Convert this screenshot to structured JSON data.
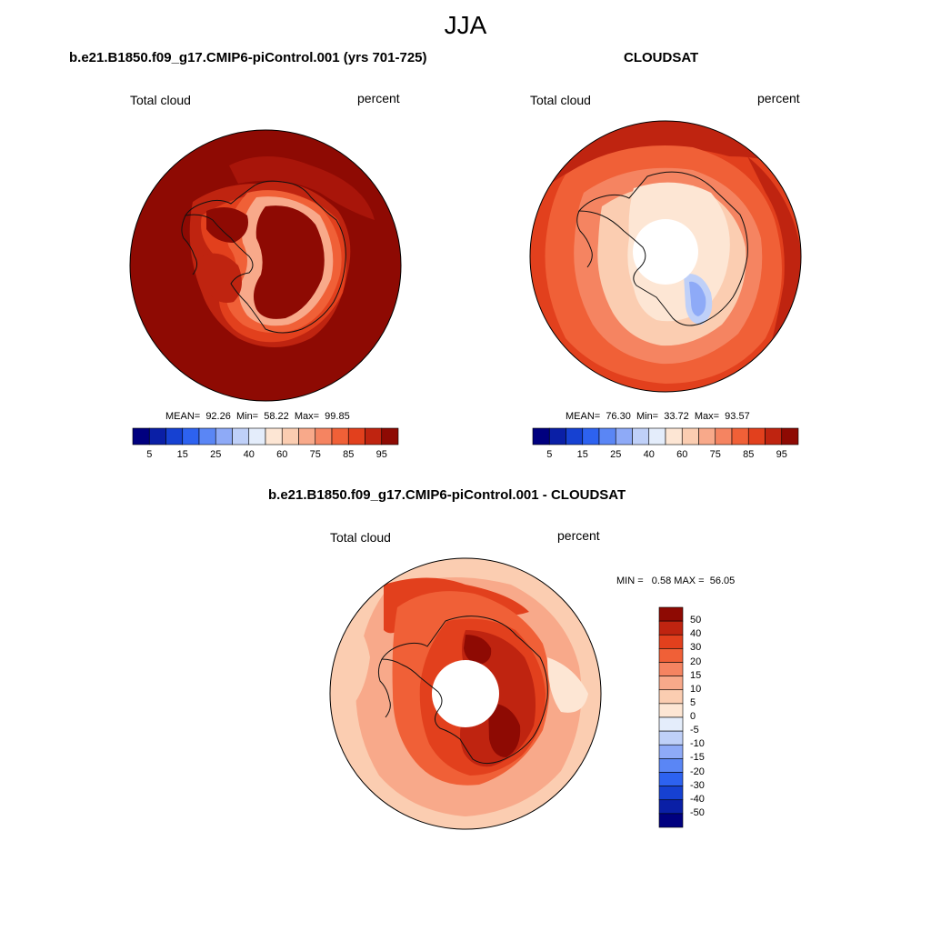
{
  "season": "JJA",
  "panels": [
    {
      "title": "b.e21.B1850.f09_g17.CMIP6-piControl.001 (yrs 701-725)",
      "variable": "Total cloud",
      "units": "percent",
      "stats": "MEAN=  92.26  Min=  58.22  Max=  99.85"
    },
    {
      "title": "CLOUDSAT",
      "variable": "Total cloud",
      "units": "percent",
      "stats": "MEAN=  76.30  Min=  33.72  Max=  93.57"
    },
    {
      "title": "b.e21.B1850.f09_g17.CMIP6-piControl.001 - CLOUDSAT",
      "variable": "Total cloud",
      "units": "percent",
      "stats": "MIN =   0.58 MAX =  56.05"
    }
  ],
  "abs_colorbar": {
    "colors": [
      "#00007f",
      "#0a1fa6",
      "#1641d2",
      "#2d62f0",
      "#5a86f5",
      "#8eaaf7",
      "#bfd0f8",
      "#e4edfb",
      "#fde6d4",
      "#fbcdb1",
      "#f8a98a",
      "#f58461",
      "#f06037",
      "#e2401d",
      "#bf2410",
      "#8e0a03"
    ],
    "tick_labels": [
      "5",
      "15",
      "25",
      "40",
      "60",
      "75",
      "85",
      "95"
    ]
  },
  "diff_colorbar": {
    "colors_top_to_bottom": [
      "#8e0a03",
      "#bf2410",
      "#e2401d",
      "#f06037",
      "#f58461",
      "#f8a98a",
      "#fbcdb1",
      "#fde6d4",
      "#e4edfb",
      "#bfd0f8",
      "#8eaaf7",
      "#5a86f5",
      "#2d62f0",
      "#1641d2",
      "#0a1fa6",
      "#00007f"
    ],
    "tick_labels": [
      "50",
      "40",
      "30",
      "20",
      "15",
      "10",
      "5",
      "0",
      "-5",
      "-10",
      "-15",
      "-20",
      "-30",
      "-40",
      "-50"
    ]
  }
}
